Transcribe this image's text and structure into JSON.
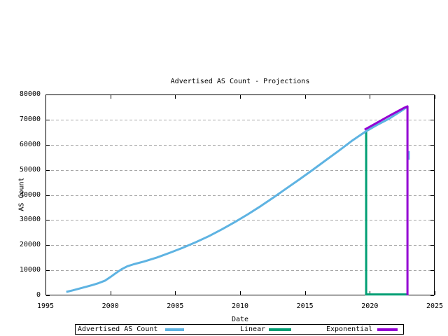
{
  "page": {
    "background": "#ffffff"
  },
  "chart_data": {
    "type": "line",
    "title": "Advertised AS Count - Projections",
    "xlabel": "Date",
    "ylabel": "AS Count",
    "xlim": [
      1995,
      2025
    ],
    "ylim": [
      0,
      80000
    ],
    "grid": true,
    "grid_color": "#a6a6a6",
    "axis_color": "#000000",
    "legend_position": "bottom",
    "x_ticks": [
      {
        "value": 1995,
        "label": "1995"
      },
      {
        "value": 2000,
        "label": "2000"
      },
      {
        "value": 2005,
        "label": "2005"
      },
      {
        "value": 2010,
        "label": "2010"
      },
      {
        "value": 2015,
        "label": "2015"
      },
      {
        "value": 2020,
        "label": "2020"
      },
      {
        "value": 2025,
        "label": "2025"
      }
    ],
    "y_ticks": [
      {
        "value": 0,
        "label": "0"
      },
      {
        "value": 10000,
        "label": "10000"
      },
      {
        "value": 20000,
        "label": "20000"
      },
      {
        "value": 30000,
        "label": "30000"
      },
      {
        "value": 40000,
        "label": "40000"
      },
      {
        "value": 50000,
        "label": "50000"
      },
      {
        "value": 60000,
        "label": "60000"
      },
      {
        "value": 70000,
        "label": "70000"
      },
      {
        "value": 80000,
        "label": "80000"
      }
    ],
    "series": [
      {
        "name": "Advertised AS Count",
        "color": "#5eb3e2",
        "width": 3,
        "points": [
          [
            1996.6,
            1400
          ],
          [
            1997.1,
            2000
          ],
          [
            1997.6,
            2700
          ],
          [
            1998.1,
            3400
          ],
          [
            1998.6,
            4100
          ],
          [
            1999.1,
            4900
          ],
          [
            1999.6,
            5900
          ],
          [
            2000.0,
            7300
          ],
          [
            2000.4,
            8800
          ],
          [
            2000.9,
            10500
          ],
          [
            2001.3,
            11600
          ],
          [
            2001.8,
            12400
          ],
          [
            2002.6,
            13500
          ],
          [
            2003.6,
            15100
          ],
          [
            2004.6,
            17000
          ],
          [
            2005.6,
            19000
          ],
          [
            2006.6,
            21200
          ],
          [
            2007.6,
            23600
          ],
          [
            2008.6,
            26300
          ],
          [
            2009.6,
            29200
          ],
          [
            2010.6,
            32300
          ],
          [
            2011.6,
            35600
          ],
          [
            2012.6,
            39100
          ],
          [
            2013.6,
            42700
          ],
          [
            2014.6,
            46300
          ],
          [
            2015.6,
            50000
          ],
          [
            2016.6,
            53800
          ],
          [
            2017.6,
            57600
          ],
          [
            2018.6,
            61500
          ],
          [
            2019.72,
            65400
          ],
          [
            2020.5,
            67700
          ],
          [
            2021.5,
            70400
          ],
          [
            2022.4,
            73400
          ],
          [
            2022.88,
            75000
          ],
          null,
          [
            2023.0,
            57500
          ],
          [
            2023.0,
            54000
          ]
        ]
      },
      {
        "name": "Linear",
        "color": "#009e73",
        "width": 3,
        "points": [
          [
            2019.72,
            65300
          ],
          [
            2019.72,
            400
          ],
          [
            2022.9,
            400
          ]
        ]
      },
      {
        "name": "Exponential",
        "color": "#9400d3",
        "width": 3,
        "points": [
          [
            2019.6,
            66000
          ],
          [
            2020.6,
            68900
          ],
          [
            2021.6,
            71800
          ],
          [
            2022.6,
            74600
          ],
          [
            2022.9,
            75300
          ],
          [
            2022.9,
            100
          ]
        ]
      }
    ],
    "draw_order": [
      1,
      0,
      2
    ]
  }
}
